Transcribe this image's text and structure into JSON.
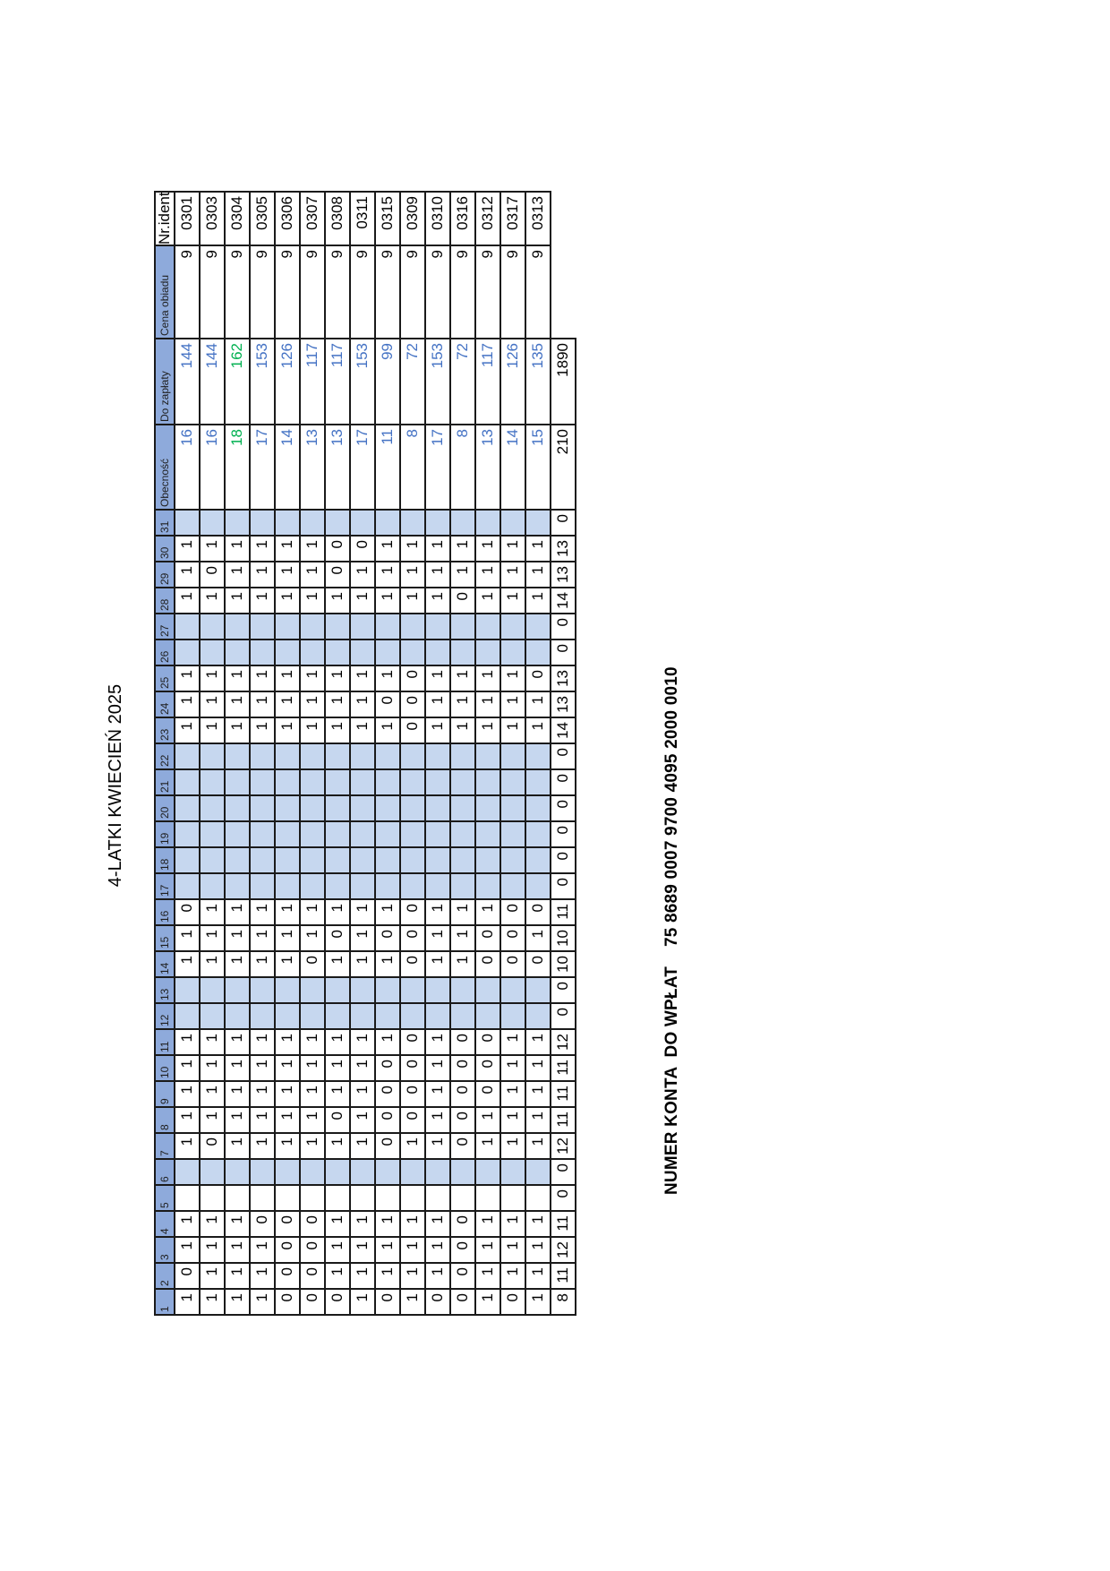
{
  "title": "4-LATKI KWIECIEŃ 2025",
  "account_line": "NUMER KONTA  DO WPŁAT    75 8689 0007 9700 4095 2000 0010",
  "headers": {
    "days": [
      "1",
      "2",
      "3",
      "4",
      "5",
      "6",
      "7",
      "8",
      "9",
      "10",
      "11",
      "12",
      "13",
      "14",
      "15",
      "16",
      "17",
      "18",
      "19",
      "20",
      "21",
      "22",
      "23",
      "24",
      "25",
      "26",
      "27",
      "28",
      "29",
      "30",
      "31"
    ],
    "attendance": "Obecność",
    "to_pay": "Do zapłaty",
    "meal_price": "Cena obiadu",
    "id": "Nr.ident."
  },
  "weekend_day_indices": [
    5,
    11,
    12,
    16,
    17,
    18,
    19,
    20,
    21,
    25,
    26,
    30
  ],
  "rows": [
    {
      "days": [
        "1",
        "0",
        "1",
        "1",
        "",
        "",
        "1",
        "1",
        "1",
        "1",
        "1",
        "",
        "",
        "1",
        "1",
        "0",
        "",
        "",
        "",
        "",
        "",
        "",
        "1",
        "1",
        "1",
        "",
        "",
        "1",
        "1",
        "1",
        ""
      ],
      "attendance": "16",
      "to_pay": "144",
      "meal_price": "9",
      "id": "0301"
    },
    {
      "days": [
        "1",
        "1",
        "1",
        "1",
        "",
        "",
        "0",
        "1",
        "1",
        "1",
        "1",
        "",
        "",
        "1",
        "1",
        "1",
        "",
        "",
        "",
        "",
        "",
        "",
        "1",
        "1",
        "1",
        "",
        "",
        "1",
        "0",
        "1",
        ""
      ],
      "attendance": "16",
      "to_pay": "144",
      "meal_price": "9",
      "id": "0303"
    },
    {
      "days": [
        "1",
        "1",
        "1",
        "1",
        "",
        "",
        "1",
        "1",
        "1",
        "1",
        "1",
        "",
        "",
        "1",
        "1",
        "1",
        "",
        "",
        "",
        "",
        "",
        "",
        "1",
        "1",
        "1",
        "",
        "",
        "1",
        "1",
        "1",
        ""
      ],
      "attendance": "18",
      "to_pay": "162",
      "meal_price": "9",
      "id": "0304",
      "highlight": "green"
    },
    {
      "days": [
        "1",
        "1",
        "1",
        "0",
        "",
        "",
        "1",
        "1",
        "1",
        "1",
        "1",
        "",
        "",
        "1",
        "1",
        "1",
        "",
        "",
        "",
        "",
        "",
        "",
        "1",
        "1",
        "1",
        "",
        "",
        "1",
        "1",
        "1",
        ""
      ],
      "attendance": "17",
      "to_pay": "153",
      "meal_price": "9",
      "id": "0305"
    },
    {
      "days": [
        "0",
        "0",
        "0",
        "0",
        "",
        "",
        "1",
        "1",
        "1",
        "1",
        "1",
        "",
        "",
        "1",
        "1",
        "1",
        "",
        "",
        "",
        "",
        "",
        "",
        "1",
        "1",
        "1",
        "",
        "",
        "1",
        "1",
        "1",
        ""
      ],
      "attendance": "14",
      "to_pay": "126",
      "meal_price": "9",
      "id": "0306"
    },
    {
      "days": [
        "0",
        "0",
        "0",
        "0",
        "",
        "",
        "1",
        "1",
        "1",
        "1",
        "1",
        "",
        "",
        "0",
        "1",
        "1",
        "",
        "",
        "",
        "",
        "",
        "",
        "1",
        "1",
        "1",
        "",
        "",
        "1",
        "1",
        "1",
        ""
      ],
      "attendance": "13",
      "to_pay": "117",
      "meal_price": "9",
      "id": "0307"
    },
    {
      "days": [
        "0",
        "1",
        "1",
        "1",
        "",
        "",
        "1",
        "0",
        "1",
        "1",
        "1",
        "",
        "",
        "1",
        "0",
        "1",
        "",
        "",
        "",
        "",
        "",
        "",
        "1",
        "1",
        "1",
        "",
        "",
        "1",
        "0",
        "0",
        ""
      ],
      "attendance": "13",
      "to_pay": "117",
      "meal_price": "9",
      "id": "0308"
    },
    {
      "days": [
        "1",
        "1",
        "1",
        "1",
        "",
        "",
        "1",
        "1",
        "1",
        "1",
        "1",
        "",
        "",
        "1",
        "1",
        "1",
        "",
        "",
        "",
        "",
        "",
        "",
        "1",
        "1",
        "1",
        "",
        "",
        "1",
        "1",
        "0",
        ""
      ],
      "attendance": "17",
      "to_pay": "153",
      "meal_price": "9",
      "id": "0311"
    },
    {
      "days": [
        "0",
        "1",
        "1",
        "1",
        "",
        "",
        "0",
        "0",
        "0",
        "0",
        "1",
        "",
        "",
        "1",
        "0",
        "1",
        "",
        "",
        "",
        "",
        "",
        "",
        "1",
        "0",
        "1",
        "",
        "",
        "1",
        "1",
        "1",
        ""
      ],
      "attendance": "11",
      "to_pay": "99",
      "meal_price": "9",
      "id": "0315"
    },
    {
      "days": [
        "1",
        "1",
        "1",
        "1",
        "",
        "",
        "1",
        "0",
        "0",
        "0",
        "0",
        "",
        "",
        "0",
        "0",
        "0",
        "",
        "",
        "",
        "",
        "",
        "",
        "0",
        "0",
        "0",
        "",
        "",
        "1",
        "1",
        "1",
        ""
      ],
      "attendance": "8",
      "to_pay": "72",
      "meal_price": "9",
      "id": "0309"
    },
    {
      "days": [
        "0",
        "1",
        "1",
        "1",
        "",
        "",
        "1",
        "1",
        "1",
        "1",
        "1",
        "",
        "",
        "1",
        "1",
        "1",
        "",
        "",
        "",
        "",
        "",
        "",
        "1",
        "1",
        "1",
        "",
        "",
        "1",
        "1",
        "1",
        ""
      ],
      "attendance": "17",
      "to_pay": "153",
      "meal_price": "9",
      "id": "0310"
    },
    {
      "days": [
        "0",
        "0",
        "0",
        "0",
        "",
        "",
        "0",
        "0",
        "0",
        "0",
        "0",
        "",
        "",
        "1",
        "1",
        "1",
        "",
        "",
        "",
        "",
        "",
        "",
        "1",
        "1",
        "1",
        "",
        "",
        "0",
        "1",
        "1",
        ""
      ],
      "attendance": "8",
      "to_pay": "72",
      "meal_price": "9",
      "id": "0316"
    },
    {
      "days": [
        "1",
        "1",
        "1",
        "1",
        "",
        "",
        "1",
        "1",
        "0",
        "0",
        "0",
        "",
        "",
        "0",
        "0",
        "1",
        "",
        "",
        "",
        "",
        "",
        "",
        "1",
        "1",
        "1",
        "",
        "",
        "1",
        "1",
        "1",
        ""
      ],
      "attendance": "13",
      "to_pay": "117",
      "meal_price": "9",
      "id": "0312"
    },
    {
      "days": [
        "0",
        "1",
        "1",
        "1",
        "",
        "",
        "1",
        "1",
        "1",
        "1",
        "1",
        "",
        "",
        "0",
        "0",
        "0",
        "",
        "",
        "",
        "",
        "",
        "",
        "1",
        "1",
        "1",
        "",
        "",
        "1",
        "1",
        "1",
        ""
      ],
      "attendance": "14",
      "to_pay": "126",
      "meal_price": "9",
      "id": "0317"
    },
    {
      "days": [
        "1",
        "1",
        "1",
        "1",
        "",
        "",
        "1",
        "1",
        "1",
        "1",
        "1",
        "",
        "",
        "0",
        "1",
        "0",
        "",
        "",
        "",
        "",
        "",
        "",
        "1",
        "1",
        "0",
        "",
        "",
        "1",
        "1",
        "1",
        ""
      ],
      "attendance": "15",
      "to_pay": "135",
      "meal_price": "9",
      "id": "0313"
    }
  ],
  "totals": {
    "days": [
      "8",
      "11",
      "12",
      "11",
      "0",
      "0",
      "12",
      "11",
      "11",
      "11",
      "12",
      "0",
      "0",
      "10",
      "10",
      "11",
      "0",
      "0",
      "0",
      "0",
      "0",
      "0",
      "14",
      "13",
      "13",
      "0",
      "0",
      "14",
      "13",
      "13",
      "0"
    ],
    "attendance": "210",
    "to_pay": "1890"
  },
  "colors": {
    "header_fill": "#8eaadb",
    "weekend_fill": "#c6d7ef",
    "value_blue": "#4472c4",
    "value_green": "#00b050",
    "border": "#1a1a1a"
  }
}
